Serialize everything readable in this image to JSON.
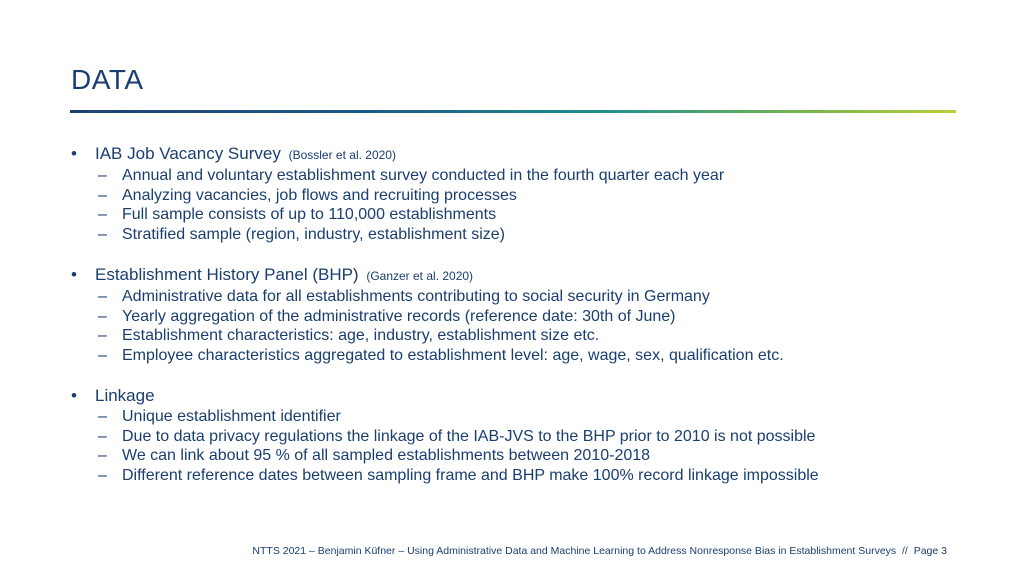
{
  "title": "DATA",
  "sections": [
    {
      "heading": "IAB Job Vacancy Survey",
      "citation": "(Bossler et al. 2020)",
      "items": [
        "Annual and voluntary establishment survey conducted in the fourth quarter each year",
        "Analyzing vacancies, job flows and recruiting processes",
        "Full sample consists of up to 110,000 establishments",
        "Stratified sample (region, industry, establishment size)"
      ]
    },
    {
      "heading": "Establishment History Panel (BHP)",
      "citation": "(Ganzer et al. 2020)",
      "items": [
        "Administrative data for all establishments contributing to social security in Germany",
        "Yearly aggregation of the administrative records (reference date: 30th of June)",
        "Establishment characteristics: age, industry, establishment size etc.",
        "Employee characteristics aggregated to establishment level: age, wage, sex, qualification etc."
      ]
    },
    {
      "heading": "Linkage",
      "citation": "",
      "items": [
        "Unique establishment identifier",
        "Due to data privacy regulations the linkage of the IAB-JVS to the BHP prior to 2010 is not possible",
        "We can link about 95 % of all sampled establishments between 2010-2018",
        "Different reference dates between sampling frame and BHP make 100% record linkage impossible"
      ]
    }
  ],
  "footer": {
    "text": "NTTS 2021 – Benjamin Küfner – Using Administrative Data and Machine Learning to Address Nonresponse Bias in Establishment Surveys",
    "separator": "//",
    "page_label": "Page",
    "page_number": "3"
  },
  "colors": {
    "text": "#1a3e70",
    "rule_start": "#1f3f73",
    "rule_end": "#b7cf3a"
  }
}
